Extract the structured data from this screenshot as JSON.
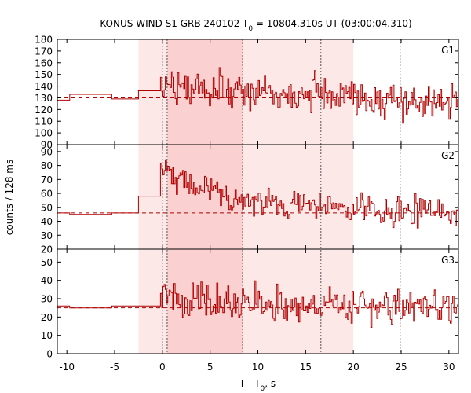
{
  "chart_data": {
    "type": "line",
    "title": {
      "main": "KONUS-WIND S1 GRB 240102 T",
      "sub": "0",
      "rest": " = 10804.310s UT (03:00:04.310)"
    },
    "xlabel": {
      "main": "T - T",
      "sub": "0",
      "rest": ", s"
    },
    "ylabel": "counts / 128 ms",
    "xlim": [
      -11,
      31
    ],
    "xticks": [
      -10,
      -5,
      0,
      5,
      10,
      15,
      20,
      25,
      30
    ],
    "regions": [
      {
        "from": -2.5,
        "to": 20.0,
        "color": "#fde8e8"
      },
      {
        "from": 0.5,
        "to": 8.4,
        "color": "#fbd0d0"
      }
    ],
    "vlines": [
      0.0,
      0.5,
      8.4,
      16.6,
      24.9
    ],
    "line_color": "#b00000",
    "background_color": "#ffffff",
    "panels": [
      {
        "label": "G1",
        "ylim": [
          90,
          180
        ],
        "yticks": [
          90,
          100,
          110,
          120,
          130,
          140,
          150,
          160,
          170,
          180
        ],
        "background_level": 130,
        "pre_trigger": [
          {
            "from": -11.0,
            "to": -9.7,
            "value": 128
          },
          {
            "from": -9.7,
            "to": -5.3,
            "value": 133
          },
          {
            "from": -5.3,
            "to": -2.5,
            "value": 129
          },
          {
            "from": -2.5,
            "to": -0.2,
            "value": 136
          }
        ],
        "burst_start": -0.2,
        "bin_width": 0.128,
        "model": [
          [
            -0.2,
            143
          ],
          [
            3.0,
            140
          ],
          [
            8.0,
            137
          ],
          [
            20.0,
            133
          ],
          [
            20.2,
            128
          ],
          [
            31.0,
            128
          ]
        ],
        "noise": 8
      },
      {
        "label": "G2",
        "ylim": [
          20,
          95
        ],
        "yticks": [
          20,
          30,
          40,
          50,
          60,
          70,
          80,
          90
        ],
        "background_level": 46,
        "pre_trigger": [
          {
            "from": -11.0,
            "to": -9.7,
            "value": 46
          },
          {
            "from": -9.7,
            "to": -5.3,
            "value": 45
          },
          {
            "from": -5.3,
            "to": -2.5,
            "value": 46
          },
          {
            "from": -2.5,
            "to": -0.2,
            "value": 58
          }
        ],
        "burst_start": -0.2,
        "bin_width": 0.128,
        "model": [
          [
            -0.2,
            80
          ],
          [
            0.5,
            78
          ],
          [
            2.0,
            66
          ],
          [
            5.0,
            60
          ],
          [
            8.0,
            56
          ],
          [
            12.0,
            52
          ],
          [
            16.0,
            51
          ],
          [
            20.0,
            48
          ],
          [
            31.0,
            46
          ]
        ],
        "noise": 5
      },
      {
        "label": "G3",
        "ylim": [
          0,
          57
        ],
        "yticks": [
          0,
          10,
          20,
          30,
          40,
          50
        ],
        "background_level": 25,
        "pre_trigger": [
          {
            "from": -11.0,
            "to": -9.7,
            "value": 26
          },
          {
            "from": -9.7,
            "to": -5.3,
            "value": 25
          },
          {
            "from": -5.3,
            "to": -2.5,
            "value": 26
          },
          {
            "from": -2.5,
            "to": -0.2,
            "value": 26
          }
        ],
        "burst_start": -0.2,
        "bin_width": 0.128,
        "model": [
          [
            -0.2,
            33
          ],
          [
            1.0,
            30
          ],
          [
            8.0,
            28
          ],
          [
            20.0,
            26
          ],
          [
            31.0,
            25
          ]
        ],
        "noise": 5
      }
    ]
  }
}
